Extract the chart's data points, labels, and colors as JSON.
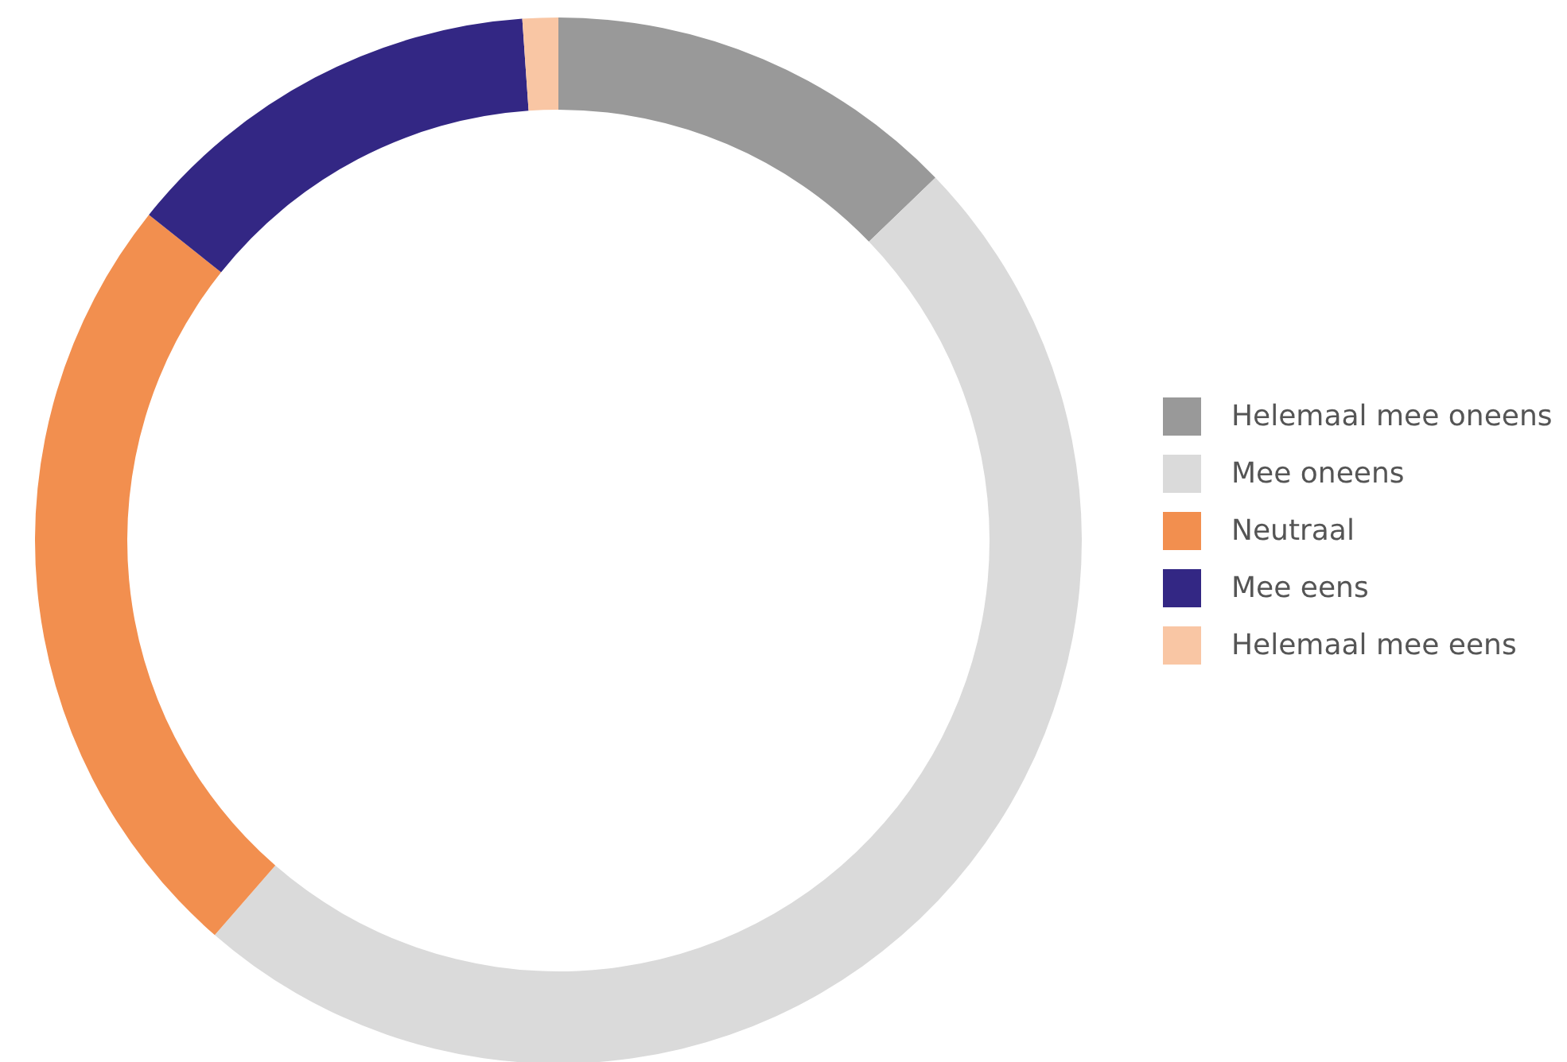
{
  "chart_data": {
    "type": "donut",
    "categories": [
      "Helemaal mee oneens",
      "Mee oneens",
      "Neutraal",
      "Mee eens",
      "Helemaal mee eens"
    ],
    "values": [
      12.8,
      48.6,
      24.3,
      13.2,
      1.1
    ],
    "colors": [
      "#999999",
      "#dadada",
      "#f28f4f",
      "#332784",
      "#f9c6a4"
    ],
    "legend": "right"
  }
}
